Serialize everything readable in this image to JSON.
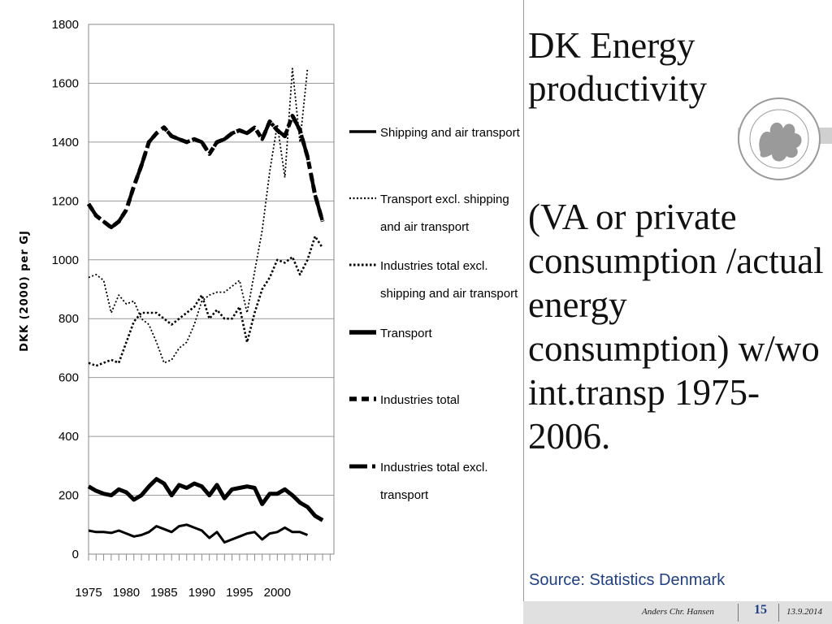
{
  "slide": {
    "title": "DK Energy productivity",
    "subtitle": "(VA or private consumption /actual energy consumption) w/wo int.transp 1975-2006.",
    "source": "Source: Statistics Denmark",
    "footer_author": "Anders Chr. Hansen",
    "footer_page": "15",
    "footer_date": "13.9.2014"
  },
  "colors": {
    "accent": "#1f3f86",
    "line": "#000000",
    "footer_bg": "#e0e0e0",
    "seal": "#9a9a9a"
  },
  "icons": {
    "seal": "university-seal-icon"
  },
  "chart_data": {
    "type": "line",
    "title": "",
    "ylabel": "DKK (2000) per GJ",
    "xlabel": "",
    "ylim": [
      0,
      1800
    ],
    "xlim": [
      1975,
      2006
    ],
    "yticks": [
      0,
      200,
      400,
      600,
      800,
      1000,
      1200,
      1400,
      1600,
      1800
    ],
    "ytick_labels": [
      "0",
      "200",
      "400",
      "600",
      "800",
      "1000",
      "1200",
      "1400",
      "1600",
      "1800"
    ],
    "xticks": [
      1975,
      1980,
      1985,
      1990,
      1995,
      2000
    ],
    "xtick_labels": [
      "1975",
      "1980",
      "1985",
      "1990",
      "1995",
      "2000"
    ],
    "grid": "horizontal",
    "legend_placement": "right",
    "x": [
      1975,
      1976,
      1977,
      1978,
      1979,
      1980,
      1981,
      1982,
      1983,
      1984,
      1985,
      1986,
      1987,
      1988,
      1989,
      1990,
      1991,
      1992,
      1993,
      1994,
      1995,
      1996,
      1997,
      1998,
      1999,
      2000,
      2001,
      2002,
      2003,
      2004,
      2005,
      2006
    ],
    "series": [
      {
        "name": "Shipping and air transport",
        "style": "solid-thin",
        "values": [
          80,
          75,
          75,
          72,
          80,
          70,
          60,
          65,
          75,
          95,
          85,
          75,
          95,
          100,
          90,
          80,
          55,
          75,
          40,
          50,
          60,
          70,
          75,
          50,
          70,
          75,
          90,
          75,
          75,
          65,
          null,
          null
        ]
      },
      {
        "name": "Transport excl. shipping and air transport",
        "style": "dotted-fine",
        "values": [
          940,
          950,
          930,
          820,
          880,
          850,
          860,
          800,
          780,
          720,
          650,
          660,
          700,
          720,
          780,
          860,
          880,
          890,
          890,
          910,
          930,
          820,
          960,
          1100,
          1300,
          1460,
          1280,
          1650,
          1400,
          1650,
          null,
          null
        ]
      },
      {
        "name": "Industries total excl. shipping and air transport",
        "style": "dotted-bold",
        "values": [
          650,
          640,
          650,
          660,
          650,
          720,
          790,
          820,
          820,
          820,
          800,
          780,
          800,
          820,
          840,
          880,
          800,
          830,
          800,
          800,
          840,
          720,
          820,
          900,
          940,
          1000,
          990,
          1010,
          950,
          1000,
          1080,
          1040
        ]
      },
      {
        "name": "Transport",
        "style": "solid-thick",
        "values": [
          230,
          215,
          205,
          200,
          220,
          210,
          185,
          200,
          230,
          255,
          240,
          200,
          235,
          225,
          240,
          230,
          200,
          235,
          190,
          220,
          225,
          230,
          225,
          170,
          205,
          205,
          220,
          200,
          175,
          160,
          130,
          115
        ]
      },
      {
        "name": "Industries total",
        "style": "dashed-short",
        "values": [
          1190,
          1150,
          1130,
          1110,
          1130,
          1170,
          1250,
          1320,
          1400,
          1430,
          1450,
          1420,
          1410,
          1400,
          1410,
          1400,
          1360,
          1400,
          1410,
          1430,
          1440,
          1430,
          1450,
          1410,
          1470,
          1440,
          1420,
          1490,
          1440,
          1350,
          1220,
          1130
        ]
      },
      {
        "name": "Industries total excl. transport",
        "style": "dashed-long",
        "values": [
          1190,
          1150,
          1130,
          1110,
          1130,
          1170,
          1250,
          1320,
          1400,
          1430,
          1450,
          1420,
          1410,
          1400,
          1410,
          1400,
          1360,
          1400,
          1410,
          1430,
          1440,
          1430,
          1450,
          1410,
          1470,
          1440,
          1420,
          1490,
          1440,
          1350,
          1220,
          1130
        ]
      }
    ]
  }
}
